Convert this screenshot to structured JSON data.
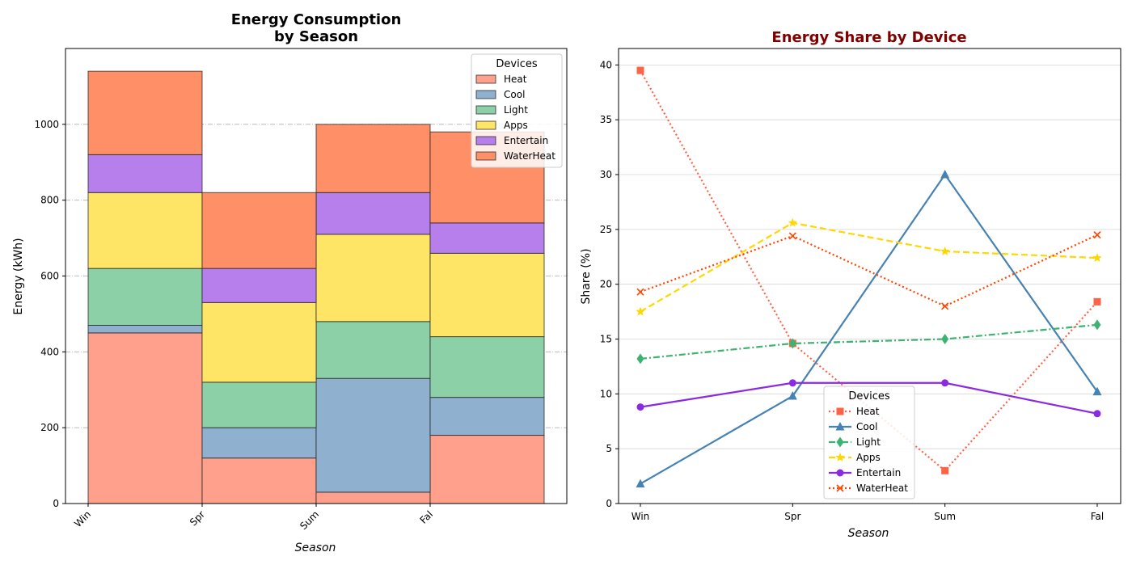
{
  "chart_data": [
    {
      "type": "bar",
      "stacked": true,
      "title": "Energy Consumption\nby Season",
      "xlabel": "Season",
      "ylabel": "Energy (kWh)",
      "categories": [
        "Win",
        "Spr",
        "Sum",
        "Fal"
      ],
      "ylim": [
        0,
        1200
      ],
      "yticks": [
        0,
        200,
        400,
        600,
        800,
        1000
      ],
      "grid": "y",
      "legend": {
        "title": "Devices",
        "placement": "top-right"
      },
      "series": [
        {
          "name": "Heat",
          "values": [
            450,
            120,
            30,
            180
          ],
          "color": "#FFA08C"
        },
        {
          "name": "Cool",
          "values": [
            20,
            80,
            300,
            100
          ],
          "color": "#90B0D0"
        },
        {
          "name": "Light",
          "values": [
            150,
            120,
            150,
            160
          ],
          "color": "#8CD0A8"
        },
        {
          "name": "Apps",
          "values": [
            200,
            210,
            230,
            220
          ],
          "color": "#FFE566"
        },
        {
          "name": "Entertain",
          "values": [
            100,
            90,
            110,
            80
          ],
          "color": "#B67FEC"
        },
        {
          "name": "WaterHeat",
          "values": [
            220,
            200,
            180,
            240
          ],
          "color": "#FF8F66"
        }
      ]
    },
    {
      "type": "line",
      "title": "Energy Share by Device",
      "title_color": "#800000",
      "xlabel": "Season",
      "ylabel": "Share (%)",
      "categories": [
        "Win",
        "Spr",
        "Sum",
        "Fal"
      ],
      "ylim": [
        0,
        41.5
      ],
      "yticks": [
        0,
        5,
        10,
        15,
        20,
        25,
        30,
        35,
        40
      ],
      "grid": "y",
      "legend": {
        "title": "Devices",
        "placement": "bottom-center"
      },
      "series": [
        {
          "name": "Heat",
          "values": [
            39.5,
            14.6,
            3.0,
            18.4
          ],
          "color": "#FF6347",
          "dash": "dotted",
          "marker": "square"
        },
        {
          "name": "Cool",
          "values": [
            1.8,
            9.8,
            30.0,
            10.2
          ],
          "color": "#4682B4",
          "dash": "solid",
          "marker": "triangle"
        },
        {
          "name": "Light",
          "values": [
            13.2,
            14.6,
            15.0,
            16.3
          ],
          "color": "#3CB371",
          "dash": "dashdot",
          "marker": "diamond"
        },
        {
          "name": "Apps",
          "values": [
            17.5,
            25.6,
            23.0,
            22.4
          ],
          "color": "#FFD700",
          "dash": "dashed",
          "marker": "star"
        },
        {
          "name": "Entertain",
          "values": [
            8.8,
            11.0,
            11.0,
            8.2
          ],
          "color": "#8A2BE2",
          "dash": "solid",
          "marker": "circle"
        },
        {
          "name": "WaterHeat",
          "values": [
            19.3,
            24.4,
            18.0,
            24.5
          ],
          "color": "#FF4500",
          "dash": "dotted",
          "marker": "x"
        }
      ]
    }
  ]
}
